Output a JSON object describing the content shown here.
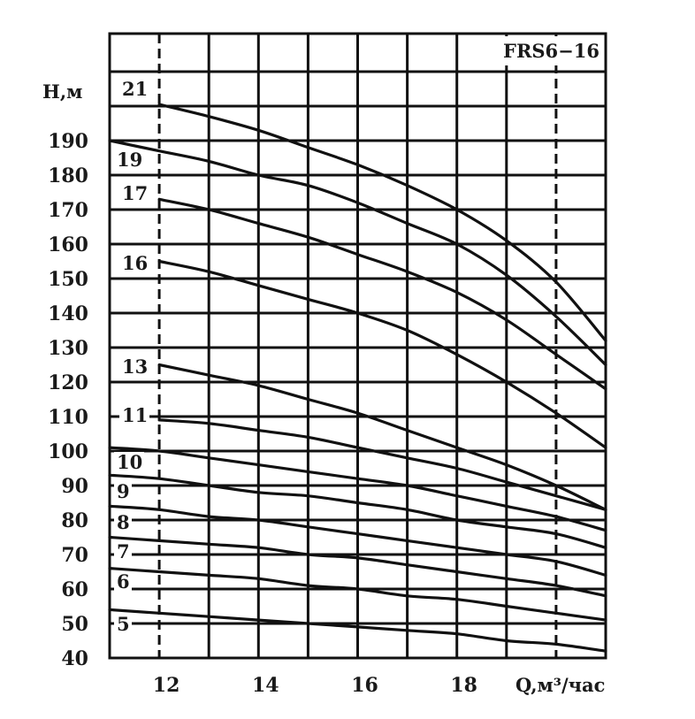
{
  "chart_data": {
    "type": "line",
    "title": "FRS6−16",
    "xlabel": "Q,м³/час",
    "ylabel": "H,м",
    "xlim": [
      11,
      21
    ],
    "ylim": [
      40,
      218
    ],
    "x_ticks": [
      "12",
      "14",
      "16",
      "18"
    ],
    "y_ticks": [
      "40",
      "50",
      "60",
      "70",
      "80",
      "90",
      "100",
      "110",
      "120",
      "130",
      "140",
      "150",
      "160",
      "170",
      "180",
      "190"
    ],
    "dashed_x": [
      12,
      20
    ],
    "grid": true,
    "x_gridlines": [
      11,
      12,
      13,
      14,
      15,
      16,
      17,
      18,
      19,
      20,
      21
    ],
    "y_gridlines": [
      40,
      50,
      60,
      70,
      80,
      90,
      100,
      110,
      120,
      130,
      140,
      150,
      160,
      170,
      180,
      190,
      200,
      210
    ],
    "series": [
      {
        "name": "21",
        "x": [
          12,
          13,
          14,
          15,
          16,
          17,
          18,
          19,
          20,
          21
        ],
        "y": [
          200.5,
          197,
          193,
          188,
          183,
          177,
          170,
          161,
          149,
          132
        ]
      },
      {
        "name": "19",
        "x": [
          11,
          12,
          13,
          14,
          15,
          16,
          17,
          18,
          19,
          20,
          21
        ],
        "y": [
          190,
          187,
          184,
          180,
          177,
          172,
          166,
          160,
          151,
          139,
          125
        ]
      },
      {
        "name": "17",
        "x": [
          12,
          13,
          14,
          15,
          16,
          17,
          18,
          19,
          20,
          21
        ],
        "y": [
          173,
          170,
          166,
          162,
          157,
          152,
          146,
          138,
          128,
          118
        ]
      },
      {
        "name": "16",
        "x": [
          12,
          13,
          14,
          15,
          16,
          17,
          18,
          19,
          20,
          21
        ],
        "y": [
          155,
          152,
          148,
          144,
          140,
          135,
          128,
          120,
          111,
          101
        ]
      },
      {
        "name": "13",
        "x": [
          12,
          13,
          14,
          15,
          16,
          17,
          18,
          19,
          20,
          21
        ],
        "y": [
          125,
          122,
          119,
          115,
          111,
          106,
          101,
          96,
          90,
          83
        ]
      },
      {
        "name": "11",
        "x": [
          12,
          13,
          14,
          15,
          16,
          17,
          18,
          19,
          20,
          21
        ],
        "y": [
          109,
          108,
          106,
          104,
          101,
          98,
          95,
          91,
          87,
          83
        ]
      },
      {
        "name": "10",
        "x": [
          11,
          12,
          13,
          14,
          15,
          16,
          17,
          18,
          19,
          20,
          21
        ],
        "y": [
          101,
          100,
          98,
          96,
          94,
          92,
          90,
          87,
          84,
          81,
          77
        ]
      },
      {
        "name": "9",
        "x": [
          11,
          12,
          13,
          14,
          15,
          16,
          17,
          18,
          19,
          20,
          21
        ],
        "y": [
          93,
          92,
          90,
          88,
          87,
          85,
          83,
          80,
          78,
          76,
          72
        ]
      },
      {
        "name": "8",
        "x": [
          11,
          12,
          13,
          14,
          15,
          16,
          17,
          18,
          19,
          20,
          21
        ],
        "y": [
          84,
          83,
          81,
          80,
          78,
          76,
          74,
          72,
          70,
          68,
          64
        ]
      },
      {
        "name": "7",
        "x": [
          11,
          12,
          13,
          14,
          15,
          16,
          17,
          18,
          19,
          20,
          21
        ],
        "y": [
          75,
          74,
          73,
          72,
          70,
          69,
          67,
          65,
          63,
          61,
          58
        ]
      },
      {
        "name": "6",
        "x": [
          11,
          12,
          13,
          14,
          15,
          16,
          17,
          18,
          19,
          20,
          21
        ],
        "y": [
          66,
          65,
          64,
          63,
          61,
          60,
          58,
          57,
          55,
          53,
          51
        ]
      },
      {
        "name": "5",
        "x": [
          11,
          12,
          13,
          14,
          15,
          16,
          17,
          18,
          19,
          20,
          21
        ],
        "y": [
          54,
          53,
          52,
          51,
          50,
          49,
          48,
          47,
          45,
          44,
          42
        ]
      }
    ]
  }
}
